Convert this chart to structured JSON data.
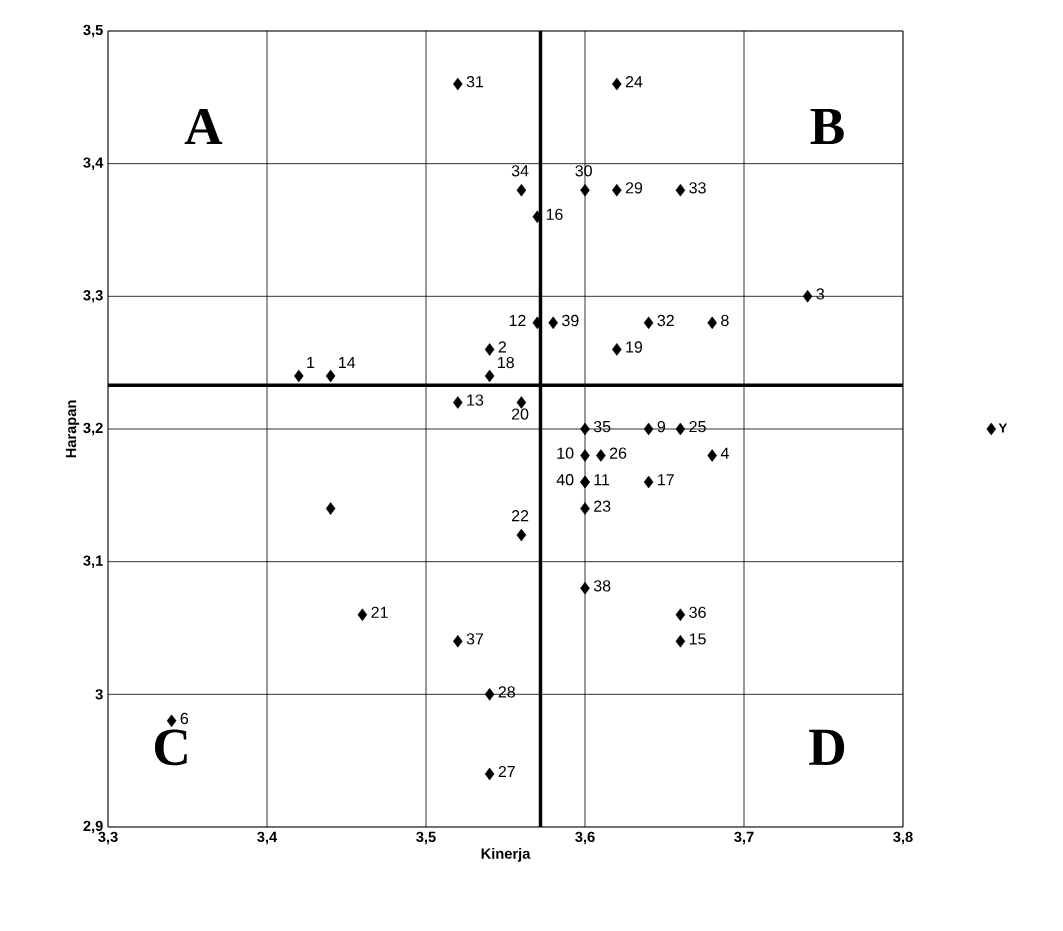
{
  "chart_data": {
    "type": "scatter",
    "xlabel": "Kinerja",
    "ylabel": "Harapan",
    "xlim": [
      3.3,
      3.8
    ],
    "ylim": [
      2.9,
      3.5
    ],
    "xticks": [
      {
        "value": 3.3,
        "label": "3,3"
      },
      {
        "value": 3.4,
        "label": "3,4"
      },
      {
        "value": 3.5,
        "label": "3,5"
      },
      {
        "value": 3.6,
        "label": "3,6"
      },
      {
        "value": 3.7,
        "label": "3,7"
      },
      {
        "value": 3.8,
        "label": "3,8"
      }
    ],
    "yticks": [
      {
        "value": 2.9,
        "label": "2,9"
      },
      {
        "value": 3.0,
        "label": "3"
      },
      {
        "value": 3.1,
        "label": "3,1"
      },
      {
        "value": 3.2,
        "label": "3,2"
      },
      {
        "value": 3.3,
        "label": "3,3"
      },
      {
        "value": 3.4,
        "label": "3,4"
      },
      {
        "value": 3.5,
        "label": "3,5"
      }
    ],
    "grid": true,
    "legend": "right",
    "marker": "diamond",
    "annotations": [
      "A",
      "B",
      "C",
      "D",
      {
        "text": "1",
        "x": 3.42,
        "y": 3.24
      },
      {
        "text": "2",
        "x": 3.54,
        "y": 3.26
      },
      {
        "text": "3",
        "x": 3.74,
        "y": 3.3
      },
      {
        "text": "4",
        "x": 3.68,
        "y": 3.18
      },
      {
        "text": "6",
        "x": 3.34,
        "y": 2.98
      },
      {
        "text": "8",
        "x": 3.68,
        "y": 3.28
      },
      {
        "text": "9",
        "x": 3.64,
        "y": 3.2
      },
      {
        "text": "10",
        "x": 3.6,
        "y": 3.18
      },
      {
        "text": "11",
        "x": 3.6,
        "y": 3.16
      },
      {
        "text": "12",
        "x": 3.57,
        "y": 3.28
      },
      {
        "text": "13",
        "x": 3.52,
        "y": 3.22
      },
      {
        "text": "14",
        "x": 3.44,
        "y": 3.24
      },
      {
        "text": "15",
        "x": 3.66,
        "y": 3.04
      },
      {
        "text": "16",
        "x": 3.57,
        "y": 3.36
      },
      {
        "text": "17",
        "x": 3.64,
        "y": 3.16
      },
      {
        "text": "18",
        "x": 3.54,
        "y": 3.24
      },
      {
        "text": "19",
        "x": 3.62,
        "y": 3.26
      },
      {
        "text": "20",
        "x": 3.56,
        "y": 3.22
      },
      {
        "text": "21",
        "x": 3.46,
        "y": 3.06
      },
      {
        "text": "22",
        "x": 3.56,
        "y": 3.12
      },
      {
        "text": "23",
        "x": 3.6,
        "y": 3.14
      },
      {
        "text": "24",
        "x": 3.62,
        "y": 3.46
      },
      {
        "text": "25",
        "x": 3.66,
        "y": 3.2
      },
      {
        "text": "26",
        "x": 3.61,
        "y": 3.18
      },
      {
        "text": "27",
        "x": 3.54,
        "y": 2.94
      },
      {
        "text": "28",
        "x": 3.54,
        "y": 3.0
      },
      {
        "text": "29",
        "x": 3.62,
        "y": 3.38
      },
      {
        "text": "30",
        "x": 3.6,
        "y": 3.38
      },
      {
        "text": "31",
        "x": 3.52,
        "y": 3.46
      },
      {
        "text": "32",
        "x": 3.64,
        "y": 3.28
      },
      {
        "text": "33",
        "x": 3.66,
        "y": 3.38
      },
      {
        "text": "34",
        "x": 3.56,
        "y": 3.38
      },
      {
        "text": "35",
        "x": 3.6,
        "y": 3.2
      },
      {
        "text": "36",
        "x": 3.66,
        "y": 3.06
      },
      {
        "text": "37",
        "x": 3.52,
        "y": 3.04
      },
      {
        "text": "38",
        "x": 3.6,
        "y": 3.08
      },
      {
        "text": "39",
        "x": 3.58,
        "y": 3.28
      },
      {
        "text": "40",
        "x": 3.6,
        "y": 3.16
      }
    ],
    "ref_lines": [
      {
        "axis": "x",
        "value": 3.572,
        "color": "#000000"
      },
      {
        "axis": "y",
        "value": 3.233,
        "color": "#000000"
      }
    ],
    "series": [
      {
        "name": "Y",
        "color": "#000000",
        "x": [
          3.42,
          3.54,
          3.74,
          3.68,
          3.34,
          3.68,
          3.64,
          3.6,
          3.6,
          3.57,
          3.52,
          3.44,
          3.66,
          3.57,
          3.64,
          3.54,
          3.62,
          3.56,
          3.46,
          3.56,
          3.6,
          3.62,
          3.66,
          3.61,
          3.54,
          3.54,
          3.62,
          3.6,
          3.52,
          3.64,
          3.66,
          3.56,
          3.6,
          3.66,
          3.52,
          3.6,
          3.58,
          3.6,
          3.44
        ],
        "values": [
          3.24,
          3.26,
          3.3,
          3.18,
          2.98,
          3.28,
          3.2,
          3.18,
          3.16,
          3.28,
          3.22,
          3.24,
          3.04,
          3.36,
          3.16,
          3.24,
          3.26,
          3.22,
          3.06,
          3.12,
          3.14,
          3.46,
          3.2,
          3.18,
          2.94,
          3.0,
          3.38,
          3.38,
          3.46,
          3.28,
          3.38,
          3.38,
          3.2,
          3.06,
          3.04,
          3.08,
          3.28,
          3.16,
          3.14
        ]
      }
    ]
  }
}
